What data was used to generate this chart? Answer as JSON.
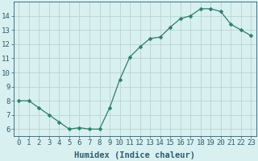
{
  "x": [
    0,
    1,
    2,
    3,
    4,
    5,
    6,
    7,
    8,
    9,
    10,
    11,
    12,
    13,
    14,
    15,
    16,
    17,
    18,
    19,
    20,
    21,
    22,
    23
  ],
  "y": [
    8.0,
    8.0,
    7.5,
    7.0,
    6.5,
    6.0,
    6.1,
    6.0,
    6.0,
    7.5,
    9.5,
    11.1,
    11.8,
    12.4,
    12.5,
    13.2,
    13.8,
    14.0,
    14.5,
    14.5,
    14.3,
    13.4,
    13.0,
    12.6
  ],
  "line_color": "#2e7d6e",
  "marker": "D",
  "marker_size": 2.5,
  "bg_color": "#d8f0f0",
  "grid_color": "#b8d4d4",
  "xlabel": "Humidex (Indice chaleur)",
  "xlim": [
    -0.5,
    23.5
  ],
  "ylim": [
    5.5,
    15.0
  ],
  "yticks": [
    6,
    7,
    8,
    9,
    10,
    11,
    12,
    13,
    14
  ],
  "xticks": [
    0,
    1,
    2,
    3,
    4,
    5,
    6,
    7,
    8,
    9,
    10,
    11,
    12,
    13,
    14,
    15,
    16,
    17,
    18,
    19,
    20,
    21,
    22,
    23
  ],
  "tick_color": "#2e5c6e",
  "label_color": "#2e5c6e",
  "font_size": 6.5,
  "xlabel_fontsize": 7.5
}
